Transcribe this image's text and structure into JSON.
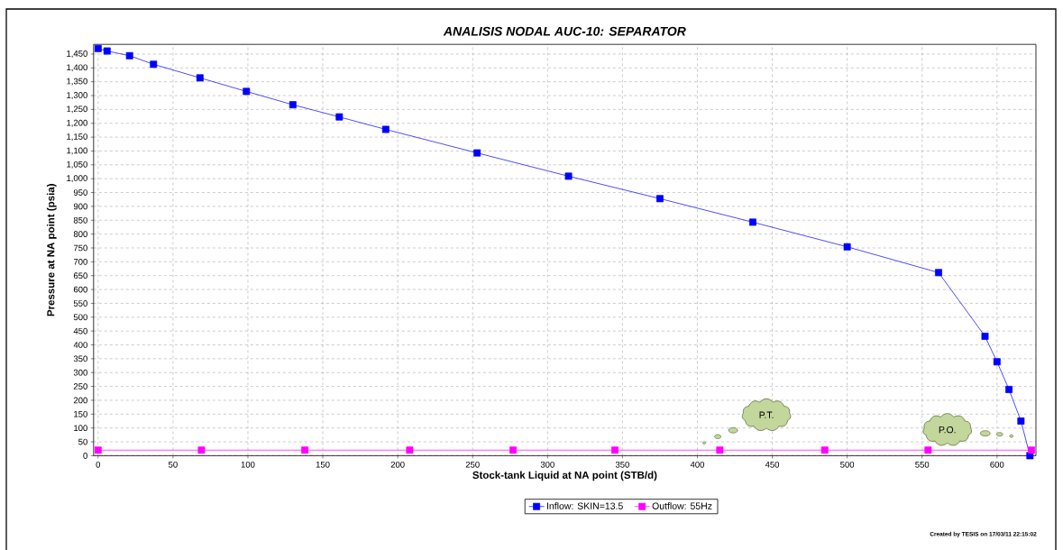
{
  "chart_data": {
    "type": "line",
    "title": "ANALISIS NODAL AUC-10: SEPARATOR",
    "xlabel": "Stock-tank Liquid at NA point (STB/d)",
    "ylabel": "Pressure at NA point (psia)",
    "series": [
      {
        "name": "Inflow: SKIN=13.5",
        "color": "#0000ff",
        "x": [
          0,
          6,
          21,
          37,
          68,
          99,
          130,
          161,
          192,
          253,
          314,
          375,
          437,
          500,
          561,
          592,
          600,
          608,
          616,
          622
        ],
        "values": [
          1470,
          1461,
          1444,
          1413,
          1364,
          1315,
          1267,
          1223,
          1178,
          1093,
          1009,
          928,
          843,
          754,
          661,
          431,
          339,
          239,
          125,
          0
        ]
      },
      {
        "name": "Outflow: 55Hz",
        "color": "#ff00ff",
        "x": [
          0,
          69,
          138,
          208,
          277,
          345,
          415,
          485,
          554,
          623
        ],
        "values": [
          20,
          20,
          20,
          20,
          20,
          20,
          20,
          20,
          20,
          20
        ]
      }
    ],
    "xlim": [
      -3,
      626
    ],
    "xticks": [
      0,
      50,
      100,
      150,
      200,
      250,
      300,
      350,
      400,
      450,
      500,
      550,
      600
    ],
    "ylim": [
      0,
      1485
    ],
    "yticks": [
      0,
      50,
      100,
      150,
      200,
      250,
      300,
      350,
      400,
      450,
      500,
      550,
      600,
      650,
      700,
      750,
      800,
      850,
      900,
      950,
      {
        "value": 1000,
        "label": "1,000"
      },
      {
        "value": 1050,
        "label": "1,050"
      },
      {
        "value": 1100,
        "label": "1,100"
      },
      {
        "value": 1150,
        "label": "1,150"
      },
      {
        "value": 1200,
        "label": "1,200"
      },
      {
        "value": 1250,
        "label": "1,250"
      },
      {
        "value": 1300,
        "label": "1,300"
      },
      {
        "value": 1350,
        "label": "1,350"
      },
      {
        "value": 1400,
        "label": "1,400"
      },
      {
        "value": 1450,
        "label": "1,450"
      }
    ],
    "grid": true,
    "legend": "bottom",
    "marker": "square",
    "line_style": "solid",
    "annotations": [
      "P.T.",
      "P.O.",
      "Created by TESIS on 17/03/11 22:15:02"
    ]
  }
}
